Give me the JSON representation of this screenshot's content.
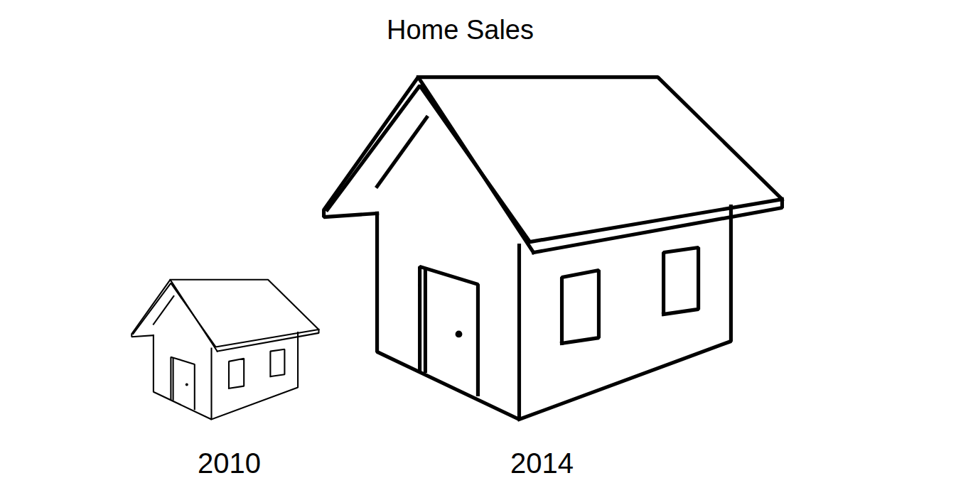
{
  "chart_data": {
    "type": "pictograph",
    "title": "Home Sales",
    "categories": [
      "2010",
      "2014"
    ],
    "values": [
      1,
      2.45
    ],
    "tick_labels": false
  }
}
